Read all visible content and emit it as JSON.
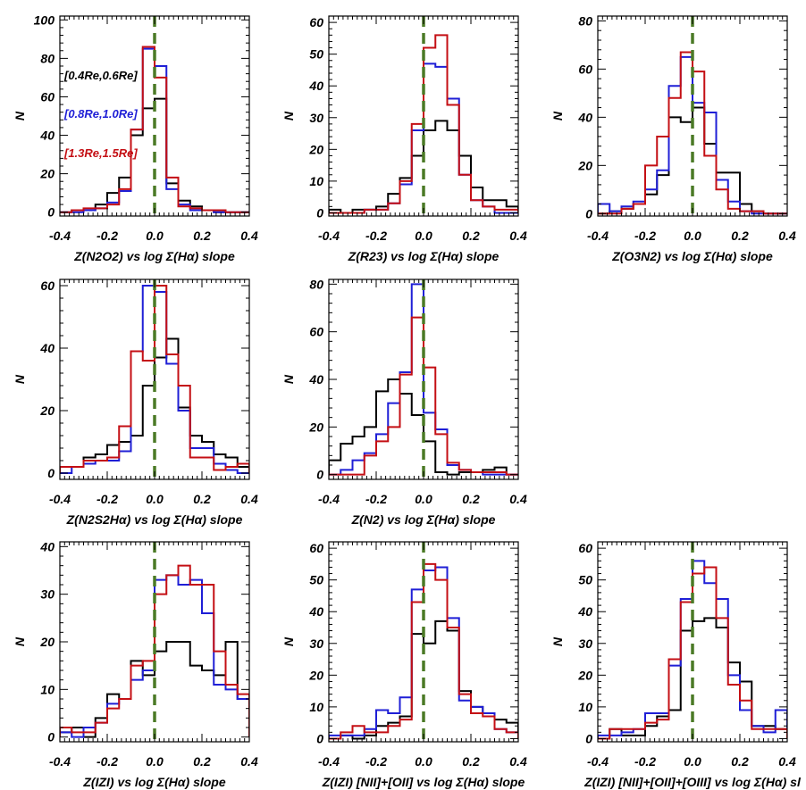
{
  "figure": {
    "ylabel": "N",
    "colors": {
      "black": "#000000",
      "blue": "#1f1fd6",
      "red": "#c40f14",
      "zero_line": "#4b7a26",
      "frame": "#000000"
    },
    "legend": [
      {
        "label": "[0.4Re,0.6Re]",
        "color": "#000000"
      },
      {
        "label": "[0.8Re,1.0Re]",
        "color": "#1f1fd6"
      },
      {
        "label": "[1.3Re,1.5Re]",
        "color": "#c40f14"
      }
    ]
  },
  "chart_data": [
    {
      "type": "histogram",
      "title": "",
      "xlabel": "Z(N2O2) vs log Σ(Hα) slope",
      "ylabel": "N",
      "xlim": [
        -0.4,
        0.4
      ],
      "ylim": [
        -2,
        102
      ],
      "bin_width": 0.05,
      "x_ticks": [
        "-0.4",
        "-0.2",
        "0.0",
        "0.2",
        "0.4"
      ],
      "y_ticks": [
        0,
        20,
        40,
        60,
        80,
        100
      ],
      "y_tick_labels": [
        "0",
        "20",
        "40",
        "60",
        "80",
        "100"
      ],
      "reference_line_x": 0,
      "legend": [
        "[0.4Re,0.6Re]",
        "[0.8Re,1.0Re]",
        "[1.3Re,1.5Re]"
      ],
      "series": [
        {
          "name": "[0.4Re,0.6Re]",
          "color": "#000000",
          "values": [
            0,
            1,
            1,
            4,
            10,
            18,
            40,
            54,
            59,
            15,
            6,
            3,
            1,
            0,
            0,
            0
          ]
        },
        {
          "name": "[0.8Re,1.0Re]",
          "color": "#1f1fd6",
          "values": [
            0,
            0,
            1,
            2,
            5,
            11,
            43,
            85,
            76,
            12,
            4,
            1,
            1,
            0,
            0,
            0
          ]
        },
        {
          "name": "[1.3Re,1.5Re]",
          "color": "#c40f14",
          "values": [
            0,
            1,
            2,
            2,
            4,
            12,
            43,
            86,
            70,
            18,
            3,
            2,
            1,
            1,
            0,
            0
          ]
        }
      ]
    },
    {
      "type": "histogram",
      "title": "",
      "xlabel": "Z(R23) vs log Σ(Hα) slope",
      "ylabel": "N",
      "xlim": [
        -0.4,
        0.4
      ],
      "ylim": [
        -1,
        62
      ],
      "bin_width": 0.05,
      "x_ticks": [
        "-0.4",
        "-0.2",
        "0.0",
        "0.2",
        "0.4"
      ],
      "y_ticks": [
        0,
        10,
        20,
        30,
        40,
        50,
        60
      ],
      "y_tick_labels": [
        "0",
        "10",
        "20",
        "30",
        "40",
        "50",
        "60"
      ],
      "reference_line_x": 0,
      "series": [
        {
          "name": "[0.4Re,0.6Re]",
          "color": "#000000",
          "values": [
            1,
            0,
            1,
            1,
            2,
            6,
            11,
            18,
            26,
            29,
            26,
            18,
            8,
            4,
            4,
            2
          ]
        },
        {
          "name": "[0.8Re,1.0Re]",
          "color": "#1f1fd6",
          "values": [
            0,
            0,
            0,
            1,
            1,
            3,
            9,
            26,
            47,
            46,
            36,
            12,
            4,
            2,
            0,
            0
          ]
        },
        {
          "name": "[1.3Re,1.5Re]",
          "color": "#c40f14",
          "values": [
            0,
            0,
            0,
            1,
            1,
            3,
            10,
            28,
            52,
            56,
            34,
            12,
            4,
            2,
            1,
            1
          ]
        }
      ]
    },
    {
      "type": "histogram",
      "title": "",
      "xlabel": "Z(O3N2) vs log Σ(Hα) slope",
      "ylabel": "N",
      "xlim": [
        -0.4,
        0.4
      ],
      "ylim": [
        -1,
        82
      ],
      "bin_width": 0.05,
      "x_ticks": [
        "-0.4",
        "-0.2",
        "0.0",
        "0.2",
        "0.4"
      ],
      "y_ticks": [
        0,
        20,
        40,
        60,
        80
      ],
      "y_tick_labels": [
        "0",
        "20",
        "40",
        "60",
        "80"
      ],
      "reference_line_x": 0,
      "series": [
        {
          "name": "[0.4Re,0.6Re]",
          "color": "#000000",
          "values": [
            0,
            1,
            2,
            4,
            8,
            16,
            40,
            38,
            44,
            29,
            17,
            17,
            4,
            1,
            0,
            0
          ]
        },
        {
          "name": "[0.8Re,1.0Re]",
          "color": "#1f1fd6",
          "values": [
            4,
            1,
            3,
            5,
            10,
            18,
            53,
            65,
            46,
            42,
            14,
            5,
            1,
            0,
            0,
            0
          ]
        },
        {
          "name": "[1.3Re,1.5Re]",
          "color": "#c40f14",
          "values": [
            0,
            0,
            2,
            4,
            20,
            32,
            48,
            67,
            59,
            24,
            10,
            2,
            1,
            1,
            0,
            0
          ]
        }
      ]
    },
    {
      "type": "histogram",
      "title": "",
      "xlabel": "Z(N2S2Hα) vs log Σ(Hα) slope",
      "ylabel": "N",
      "xlim": [
        -0.4,
        0.4
      ],
      "ylim": [
        -2,
        62
      ],
      "bin_width": 0.05,
      "x_ticks": [
        "-0.4",
        "-0.2",
        "0.0",
        "0.2",
        "0.4"
      ],
      "y_ticks": [
        0,
        20,
        40,
        60
      ],
      "y_tick_labels": [
        "0",
        "20",
        "40",
        "60"
      ],
      "reference_line_x": 0,
      "series": [
        {
          "name": "[0.4Re,0.6Re]",
          "color": "#000000",
          "values": [
            2,
            2,
            5,
            6,
            9,
            10,
            12,
            28,
            37,
            43,
            21,
            12,
            10,
            6,
            5,
            2
          ]
        },
        {
          "name": "[0.8Re,1.0Re]",
          "color": "#1f1fd6",
          "values": [
            0,
            2,
            3,
            4,
            4,
            7,
            39,
            60,
            58,
            35,
            20,
            8,
            8,
            3,
            1,
            0
          ]
        },
        {
          "name": "[1.3Re,1.5Re]",
          "color": "#c40f14",
          "values": [
            2,
            2,
            4,
            4,
            5,
            15,
            39,
            36,
            60,
            38,
            28,
            5,
            5,
            1,
            2,
            3
          ]
        }
      ]
    },
    {
      "type": "histogram",
      "title": "",
      "xlabel": "Z(N2) vs log Σ(Hα) slope",
      "ylabel": "N",
      "xlim": [
        -0.4,
        0.4
      ],
      "ylim": [
        -2,
        82
      ],
      "bin_width": 0.05,
      "x_ticks": [
        "-0.4",
        "-0.2",
        "0.0",
        "0.2",
        "0.4"
      ],
      "y_ticks": [
        0,
        20,
        40,
        60,
        80
      ],
      "y_tick_labels": [
        "0",
        "20",
        "40",
        "60",
        "80"
      ],
      "reference_line_x": 0,
      "series": [
        {
          "name": "[0.4Re,0.6Re]",
          "color": "#000000",
          "values": [
            6,
            13,
            16,
            20,
            35,
            40,
            34,
            25,
            14,
            1,
            0,
            1,
            1,
            2,
            3,
            0
          ]
        },
        {
          "name": "[0.8Re,1.0Re]",
          "color": "#1f1fd6",
          "values": [
            0,
            2,
            6,
            9,
            17,
            30,
            43,
            80,
            26,
            19,
            4,
            2,
            1,
            0,
            0,
            0
          ]
        },
        {
          "name": "[1.3Re,1.5Re]",
          "color": "#c40f14",
          "values": [
            0,
            0,
            0,
            8,
            14,
            20,
            42,
            66,
            45,
            17,
            5,
            2,
            1,
            1,
            1,
            0
          ]
        }
      ]
    },
    {
      "type": "histogram",
      "title": "",
      "xlabel": "Z(IZI) vs log Σ(Hα) slope",
      "ylabel": "N",
      "xlim": [
        -0.4,
        0.4
      ],
      "ylim": [
        -1,
        41
      ],
      "bin_width": 0.05,
      "x_ticks": [
        "-0.4",
        "-0.2",
        "0.0",
        "0.2",
        "0.4"
      ],
      "y_ticks": [
        0,
        10,
        20,
        30,
        40
      ],
      "y_tick_labels": [
        "0",
        "10",
        "20",
        "30",
        "40"
      ],
      "reference_line_x": 0,
      "series": [
        {
          "name": "[0.4Re,0.6Re]",
          "color": "#000000",
          "values": [
            1,
            2,
            0,
            4,
            9,
            8,
            16,
            13,
            18,
            20,
            20,
            15,
            14,
            13,
            20,
            8
          ]
        },
        {
          "name": "[0.8Re,1.0Re]",
          "color": "#1f1fd6",
          "values": [
            1,
            0,
            2,
            3,
            7,
            8,
            12,
            14,
            33,
            34,
            32,
            33,
            26,
            11,
            10,
            8
          ]
        },
        {
          "name": "[1.3Re,1.5Re]",
          "color": "#c40f14",
          "values": [
            2,
            1,
            1,
            3,
            6,
            8,
            15,
            16,
            30,
            34,
            36,
            32,
            32,
            18,
            11,
            9
          ]
        }
      ]
    },
    {
      "type": "histogram",
      "title": "",
      "xlabel": "Z(IZI) [NII]+[OII] vs log Σ(Hα) slope",
      "ylabel": "N",
      "xlim": [
        -0.4,
        0.4
      ],
      "ylim": [
        -1,
        62
      ],
      "bin_width": 0.05,
      "x_ticks": [
        "-0.4",
        "-0.2",
        "0.0",
        "0.2",
        "0.4"
      ],
      "y_ticks": [
        0,
        10,
        20,
        30,
        40,
        50,
        60
      ],
      "y_tick_labels": [
        "0",
        "10",
        "20",
        "30",
        "40",
        "50",
        "60"
      ],
      "reference_line_x": 0,
      "series": [
        {
          "name": "[0.4Re,0.6Re]",
          "color": "#000000",
          "values": [
            0,
            1,
            0,
            1,
            4,
            5,
            7,
            33,
            30,
            37,
            34,
            15,
            10,
            8,
            6,
            5
          ]
        },
        {
          "name": "[0.8Re,1.0Re]",
          "color": "#1f1fd6",
          "values": [
            1,
            1,
            1,
            3,
            9,
            8,
            13,
            47,
            53,
            54,
            38,
            12,
            10,
            8,
            3,
            2
          ]
        },
        {
          "name": "[1.3Re,1.5Re]",
          "color": "#c40f14",
          "values": [
            0,
            2,
            4,
            2,
            2,
            4,
            6,
            43,
            55,
            50,
            35,
            14,
            8,
            7,
            3,
            2
          ]
        }
      ]
    },
    {
      "type": "histogram",
      "title": "",
      "xlabel": "Z(IZI) [NII]+[OII]+[OIII] vs log Σ(Hα) sl",
      "ylabel": "N",
      "xlim": [
        -0.4,
        0.4
      ],
      "ylim": [
        -1,
        62
      ],
      "bin_width": 0.05,
      "x_ticks": [
        "-0.4",
        "-0.2",
        "0.0",
        "0.2",
        "0.4"
      ],
      "y_ticks": [
        0,
        10,
        20,
        30,
        40,
        50,
        60
      ],
      "y_tick_labels": [
        "0",
        "10",
        "20",
        "30",
        "40",
        "50",
        "60"
      ],
      "reference_line_x": 0,
      "series": [
        {
          "name": "[0.4Re,0.6Re]",
          "color": "#000000",
          "values": [
            0,
            3,
            1,
            1,
            4,
            7,
            9,
            34,
            37,
            38,
            35,
            24,
            18,
            4,
            4,
            3
          ]
        },
        {
          "name": "[0.8Re,1.0Re]",
          "color": "#1f1fd6",
          "values": [
            1,
            1,
            2,
            3,
            8,
            8,
            23,
            44,
            56,
            49,
            44,
            20,
            9,
            4,
            2,
            9
          ]
        },
        {
          "name": "[1.3Re,1.5Re]",
          "color": "#c40f14",
          "values": [
            0,
            3,
            3,
            3,
            5,
            6,
            25,
            43,
            52,
            54,
            38,
            17,
            12,
            3,
            3,
            3
          ]
        }
      ]
    }
  ]
}
